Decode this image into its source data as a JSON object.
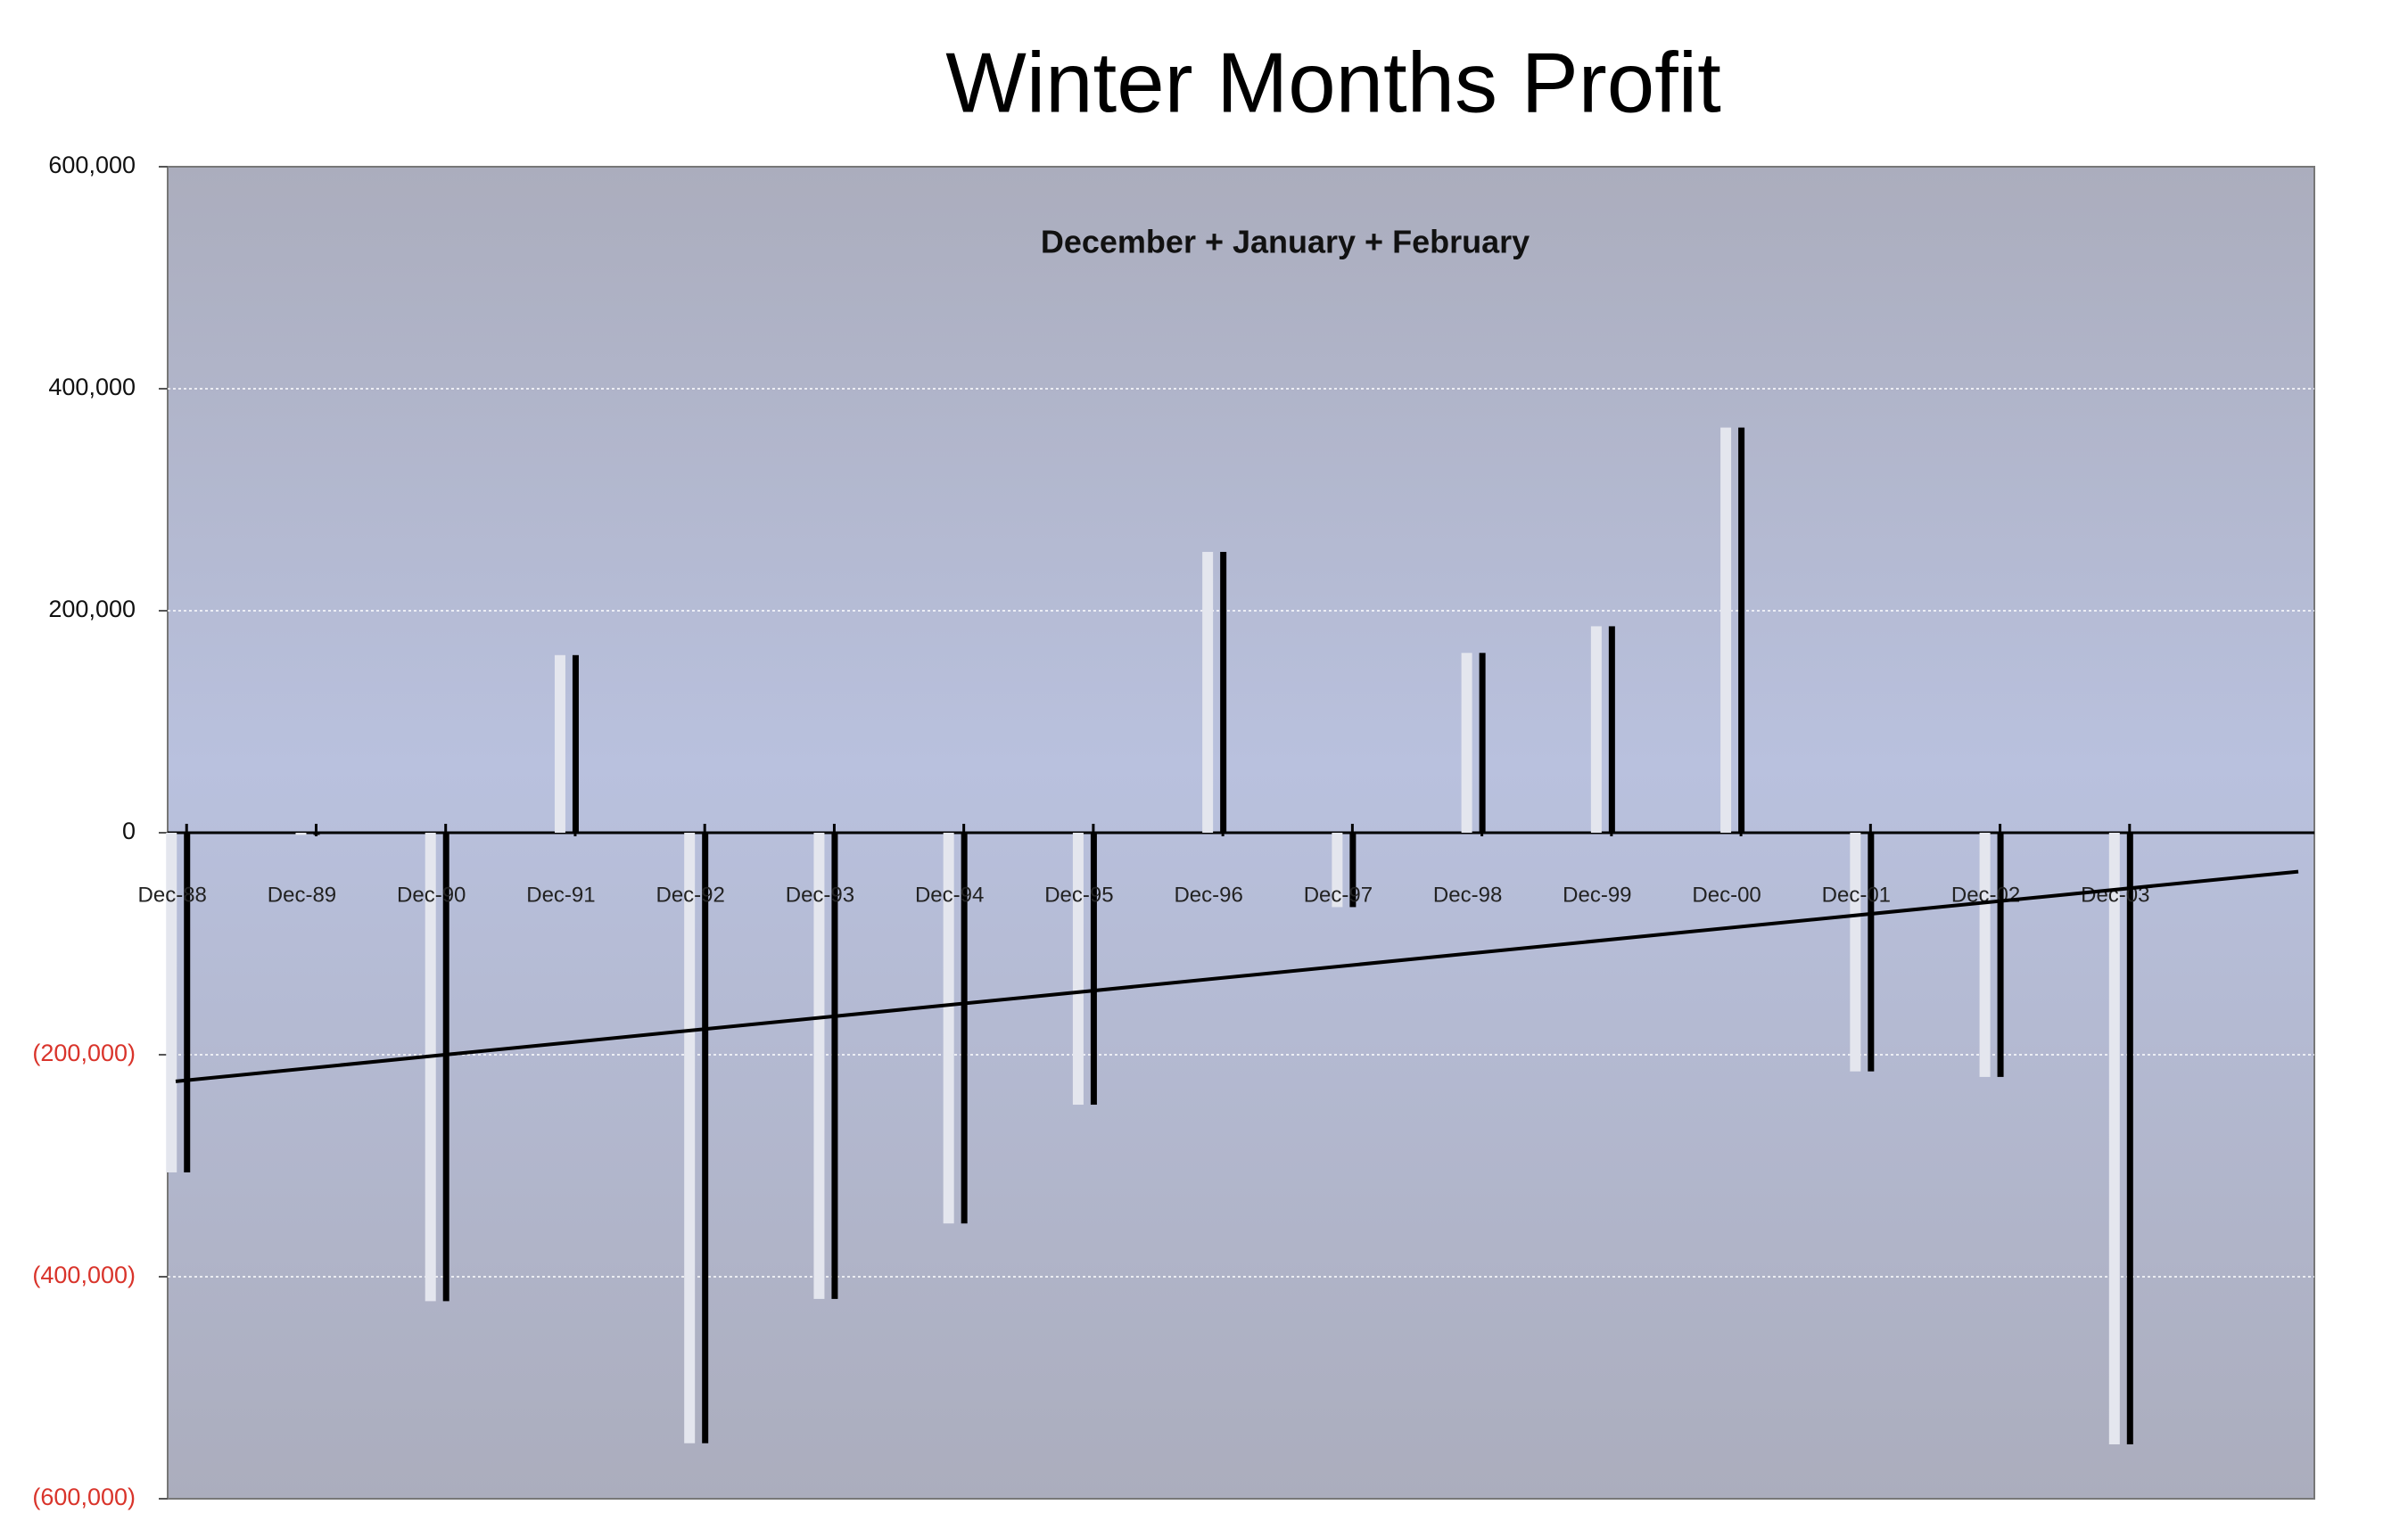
{
  "chart_data": {
    "type": "bar",
    "title": "Winter Months Profit",
    "subtitle": "December + January + February",
    "categories": [
      "Dec-88",
      "Dec-89",
      "Dec-90",
      "Dec-91",
      "Dec-92",
      "Dec-93",
      "Dec-94",
      "Dec-95",
      "Dec-96",
      "Dec-97",
      "Dec-98",
      "Dec-99",
      "Dec-00",
      "Dec-01",
      "Dec-02",
      "Dec-03"
    ],
    "values": [
      -306000,
      -2000,
      -422000,
      160000,
      -550000,
      -420000,
      -352000,
      -245000,
      253000,
      -67000,
      162000,
      186000,
      365000,
      -215000,
      -220000,
      -551000
    ],
    "color": "#000000",
    "shadow_color": "#e4e6ee",
    "trendline": {
      "start": -224000,
      "end": -35000,
      "color": "#000000"
    },
    "ylim": [
      -600000,
      600000
    ],
    "yticks": [
      {
        "value": -600000,
        "label": "(600,000)"
      },
      {
        "value": -400000,
        "label": "(400,000)"
      },
      {
        "value": -200000,
        "label": "(200,000)"
      },
      0,
      {
        "value": 200000,
        "label": "200,000"
      },
      {
        "value": 400000,
        "label": "400,000"
      },
      {
        "value": 600000,
        "label": "600,000"
      }
    ],
    "negative_tick_color": "#d9342b",
    "grid": true
  }
}
